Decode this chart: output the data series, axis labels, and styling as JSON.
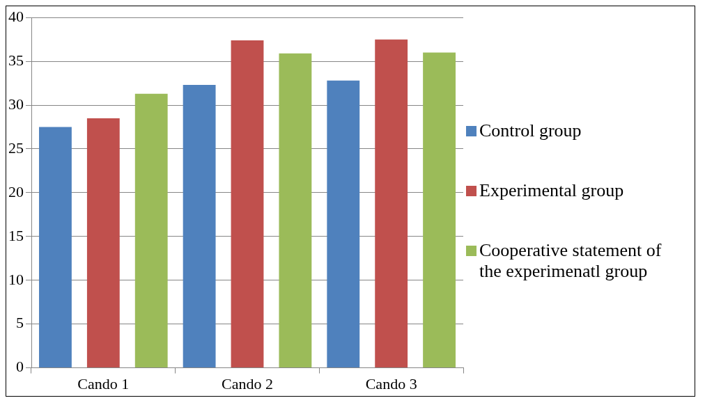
{
  "chart_data": {
    "type": "bar",
    "categories": [
      "Cando 1",
      "Cando 2",
      "Cando 3"
    ],
    "series": [
      {
        "name": "Control group",
        "color": "#4f81bd",
        "values": [
          27.5,
          32.3,
          32.8
        ]
      },
      {
        "name": "Experimental group",
        "color": "#c0504d",
        "values": [
          28.5,
          37.4,
          37.5
        ]
      },
      {
        "name": "Cooperative statement of the experimenatl group",
        "color": "#9bbb59",
        "values": [
          31.3,
          35.9,
          36.0
        ]
      }
    ],
    "ylim": [
      0,
      40
    ],
    "yticks": [
      0,
      5,
      10,
      15,
      20,
      25,
      30,
      35,
      40
    ],
    "grid": "y",
    "legend": "right"
  }
}
